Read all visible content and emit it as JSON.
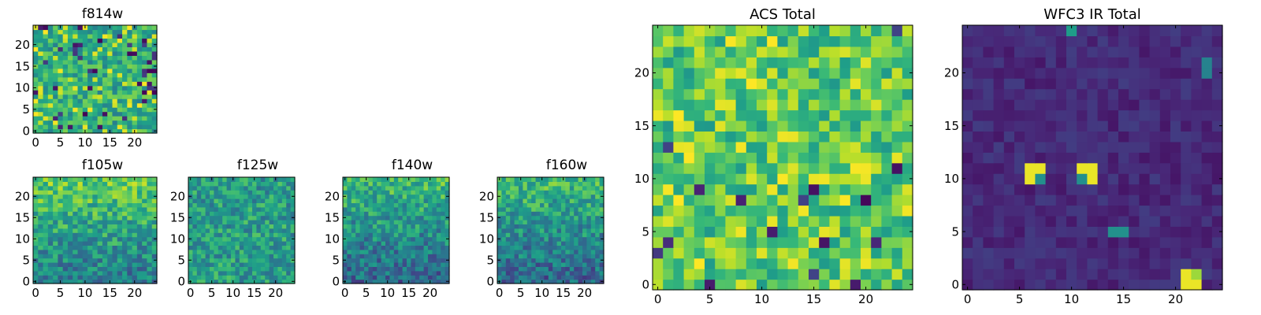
{
  "chart_data": [
    {
      "type": "heatmap",
      "title": "f814w",
      "xticks": [
        "0",
        "5",
        "10",
        "15",
        "20"
      ],
      "yticks": [
        "0",
        "5",
        "10",
        "15",
        "20"
      ],
      "xlim": [
        0,
        25
      ],
      "ylim": [
        0,
        25
      ],
      "colormap": "viridis",
      "value_range": [
        0,
        1
      ],
      "grid_size": [
        25,
        25
      ],
      "brightness": 0.62,
      "dark_fraction": 0.07,
      "bright_fraction": 0.1
    },
    {
      "type": "heatmap",
      "title": "f105w",
      "xticks": [
        "0",
        "5",
        "10",
        "15",
        "20"
      ],
      "yticks": [
        "0",
        "5",
        "10",
        "15",
        "20"
      ],
      "xlim": [
        0,
        25
      ],
      "ylim": [
        0,
        25
      ],
      "colormap": "viridis",
      "value_range": [
        0,
        1
      ],
      "grid_size": [
        25,
        25
      ],
      "brightness": 0.58,
      "top_bright": true
    },
    {
      "type": "heatmap",
      "title": "f125w",
      "xticks": [
        "0",
        "5",
        "10",
        "15",
        "20"
      ],
      "yticks": [
        "0",
        "5",
        "10",
        "15",
        "20"
      ],
      "xlim": [
        0,
        25
      ],
      "ylim": [
        0,
        25
      ],
      "colormap": "viridis",
      "value_range": [
        0,
        1
      ],
      "grid_size": [
        25,
        25
      ],
      "brightness": 0.55,
      "top_bright": false
    },
    {
      "type": "heatmap",
      "title": "f140w",
      "xticks": [
        "0",
        "5",
        "10",
        "15",
        "20"
      ],
      "yticks": [
        "0",
        "5",
        "10",
        "15",
        "20"
      ],
      "xlim": [
        0,
        25
      ],
      "ylim": [
        0,
        25
      ],
      "colormap": "viridis",
      "value_range": [
        0,
        1
      ],
      "grid_size": [
        25,
        25
      ],
      "brightness": 0.5,
      "top_bright": true
    },
    {
      "type": "heatmap",
      "title": "f160w",
      "xticks": [
        "0",
        "5",
        "10",
        "15",
        "20"
      ],
      "yticks": [
        "0",
        "5",
        "10",
        "15",
        "20"
      ],
      "xlim": [
        0,
        25
      ],
      "ylim": [
        0,
        25
      ],
      "colormap": "viridis",
      "value_range": [
        0,
        1
      ],
      "grid_size": [
        25,
        25
      ],
      "brightness": 0.5,
      "top_bright": true
    },
    {
      "type": "heatmap",
      "title": "ACS Total",
      "xticks": [
        "0",
        "5",
        "10",
        "15",
        "20"
      ],
      "yticks": [
        "0",
        "5",
        "10",
        "15",
        "20"
      ],
      "xlim": [
        0,
        25
      ],
      "ylim": [
        0,
        25
      ],
      "colormap": "viridis",
      "value_range": [
        0,
        1
      ],
      "grid_size": [
        25,
        25
      ],
      "brightness": 0.72,
      "dark_fraction": 0.03,
      "bright_fraction": 0.1
    },
    {
      "type": "heatmap",
      "title": "WFC3 IR Total",
      "xticks": [
        "0",
        "5",
        "10",
        "15",
        "20"
      ],
      "yticks": [
        "0",
        "5",
        "10",
        "15",
        "20"
      ],
      "xlim": [
        0,
        25
      ],
      "ylim": [
        0,
        25
      ],
      "colormap": "viridis",
      "value_range": [
        0,
        1
      ],
      "grid_size": [
        25,
        25
      ],
      "brightness": 0.12,
      "hotspots": [
        {
          "x": 6,
          "y": 10,
          "w": 2,
          "h": 2,
          "v": 0.97
        },
        {
          "x": 7,
          "y": 10,
          "w": 1,
          "h": 1,
          "v": 0.5
        },
        {
          "x": 11,
          "y": 10,
          "w": 2,
          "h": 2,
          "v": 0.97
        },
        {
          "x": 11,
          "y": 10,
          "w": 1,
          "h": 1,
          "v": 0.5
        },
        {
          "x": 21,
          "y": 0,
          "w": 2,
          "h": 2,
          "v": 0.97
        },
        {
          "x": 22,
          "y": 1,
          "w": 1,
          "h": 1,
          "v": 0.85
        },
        {
          "x": 14,
          "y": 5,
          "w": 2,
          "h": 1,
          "v": 0.5
        },
        {
          "x": 10,
          "y": 24,
          "w": 1,
          "h": 1,
          "v": 0.55
        },
        {
          "x": 23,
          "y": 20,
          "w": 1,
          "h": 2,
          "v": 0.45
        }
      ]
    }
  ]
}
